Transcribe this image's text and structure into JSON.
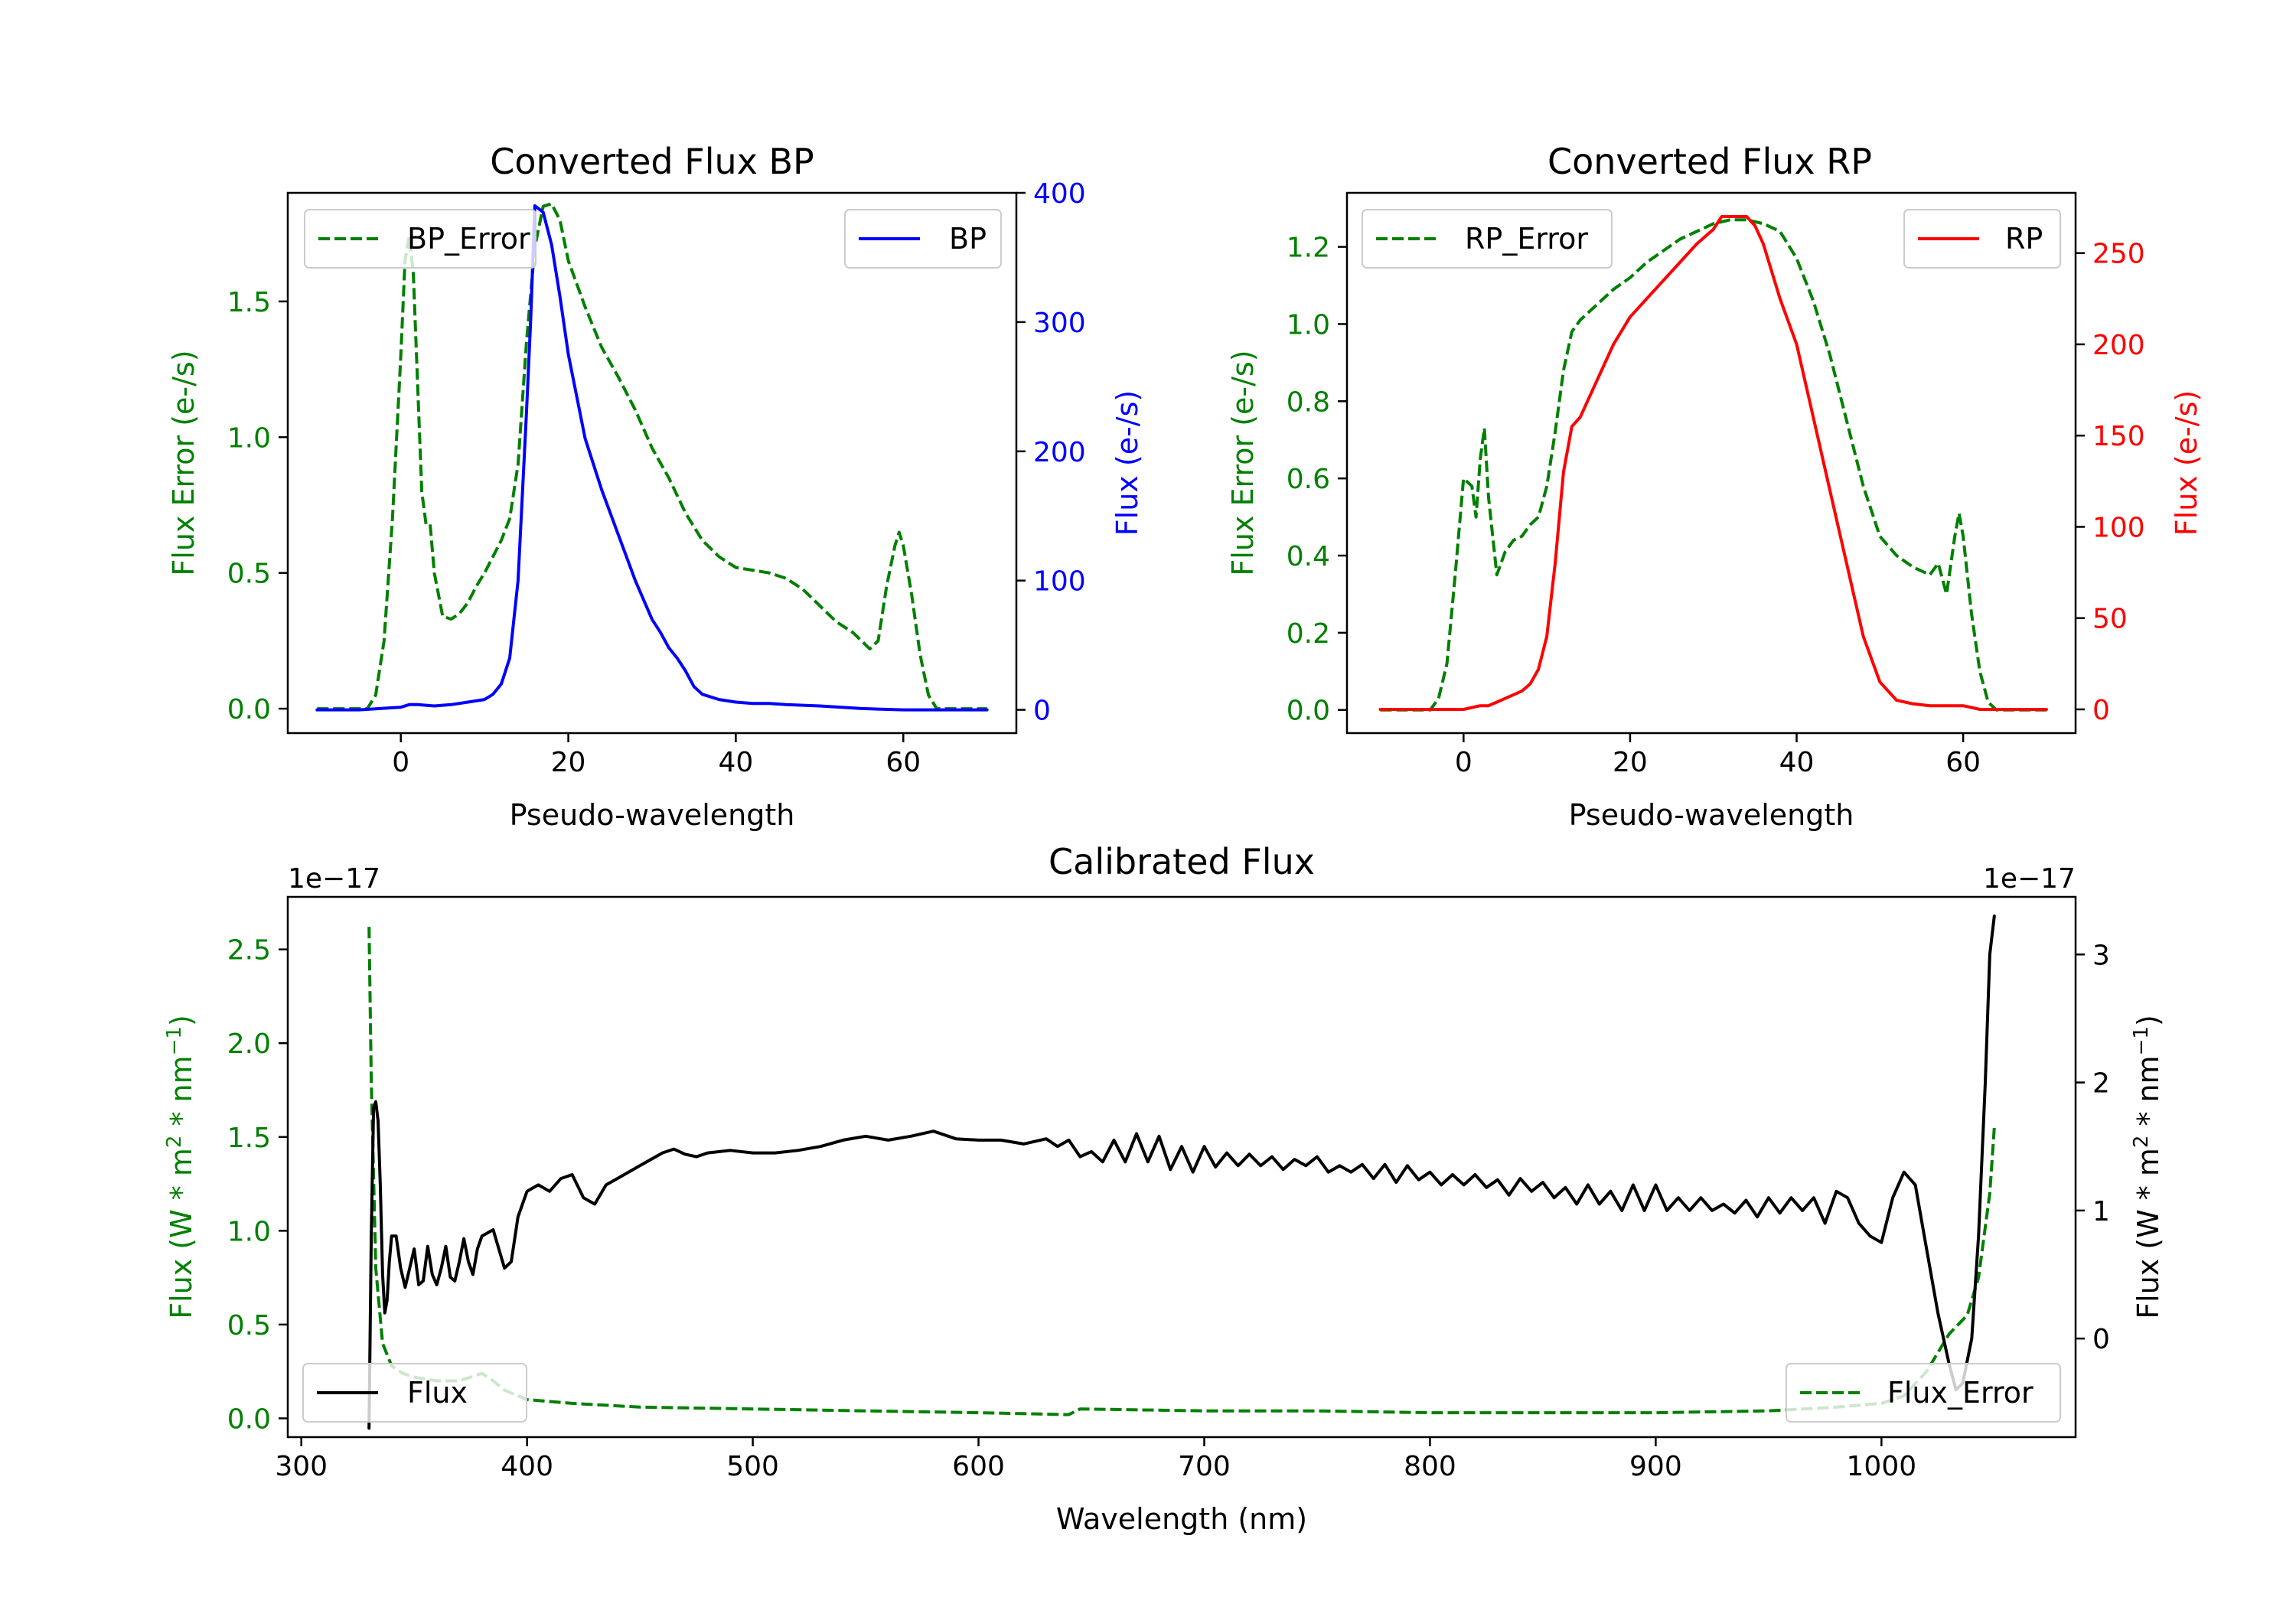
{
  "colors": {
    "green": "#008000",
    "blue": "#0000ff",
    "red": "#ff0000",
    "black": "#000000"
  },
  "chart_data": [
    {
      "id": "bp",
      "type": "line",
      "title": "Converted Flux BP",
      "xlabel": "Pseudo-wavelength",
      "ylabel_left": "Flux Error (e-/s)",
      "ylabel_right": "Flux (e-/s)",
      "xlim": [
        -13.5,
        73.5
      ],
      "ylim_left": [
        -0.09,
        1.9
      ],
      "ylim_right": [
        -18,
        400
      ],
      "xticks": [
        0,
        20,
        40,
        60
      ],
      "yticks_left": [
        0.0,
        0.5,
        1.0,
        1.5
      ],
      "ytick_labels_left": [
        "0.0",
        "0.5",
        "1.0",
        "1.5"
      ],
      "yticks_right": [
        0,
        100,
        200,
        300,
        400
      ],
      "ytick_labels_right": [
        "0",
        "100",
        "200",
        "300",
        "400"
      ],
      "series": [
        {
          "name": "BP_Error",
          "axis": "left",
          "style": "dashed",
          "color": "#008000",
          "legend": "top-left",
          "x": [
            -10,
            -4,
            -3,
            -2,
            -1,
            0,
            0.5,
            1,
            1.5,
            2,
            2.5,
            3,
            3.5,
            4,
            5,
            6,
            7,
            8,
            9,
            10,
            11,
            12,
            13,
            14,
            15,
            16,
            17,
            18,
            19,
            20,
            22,
            24,
            26,
            28,
            30,
            32,
            34,
            36,
            38,
            40,
            42,
            44,
            46,
            48,
            50,
            52,
            54,
            56,
            57,
            58,
            59,
            59.5,
            60,
            61,
            62,
            63,
            64,
            66,
            68,
            70
          ],
          "y": [
            0.0,
            0.0,
            0.05,
            0.25,
            0.7,
            1.3,
            1.65,
            1.74,
            1.6,
            1.2,
            0.8,
            0.68,
            0.68,
            0.5,
            0.34,
            0.33,
            0.35,
            0.39,
            0.45,
            0.5,
            0.56,
            0.62,
            0.7,
            0.9,
            1.35,
            1.7,
            1.85,
            1.86,
            1.8,
            1.65,
            1.48,
            1.33,
            1.22,
            1.1,
            0.96,
            0.85,
            0.72,
            0.62,
            0.56,
            0.52,
            0.51,
            0.5,
            0.48,
            0.44,
            0.38,
            0.32,
            0.28,
            0.22,
            0.25,
            0.45,
            0.6,
            0.65,
            0.6,
            0.42,
            0.2,
            0.05,
            0.0,
            0.0,
            0.0,
            0.0
          ]
        },
        {
          "name": "BP",
          "axis": "right",
          "style": "solid",
          "color": "#0000ff",
          "legend": "top-right",
          "x": [
            -10,
            -5,
            0,
            1,
            2,
            4,
            6,
            8,
            10,
            11,
            12,
            13,
            14,
            15,
            15.5,
            16,
            17,
            18,
            19,
            20,
            22,
            24,
            26,
            28,
            30,
            31,
            32,
            33,
            34,
            35,
            36,
            38,
            40,
            42,
            44,
            46,
            50,
            55,
            60,
            65,
            70
          ],
          "y": [
            0,
            0,
            2,
            4,
            4,
            3,
            4,
            6,
            8,
            12,
            20,
            40,
            100,
            230,
            300,
            390,
            385,
            360,
            320,
            275,
            210,
            170,
            135,
            100,
            70,
            60,
            48,
            40,
            30,
            18,
            12,
            8,
            6,
            5,
            5,
            4,
            3,
            1,
            0,
            0,
            0
          ]
        }
      ]
    },
    {
      "id": "rp",
      "type": "line",
      "title": "Converted Flux RP",
      "xlabel": "Pseudo-wavelength",
      "ylabel_left": "Flux Error (e-/s)",
      "ylabel_right": "Flux (e-/s)",
      "xlim": [
        -14,
        73.5
      ],
      "ylim_left": [
        -0.06,
        1.34
      ],
      "ylim_right": [
        -13,
        283
      ],
      "xticks": [
        0,
        20,
        40,
        60
      ],
      "yticks_left": [
        0.0,
        0.2,
        0.4,
        0.6,
        0.8,
        1.0,
        1.2
      ],
      "ytick_labels_left": [
        "0.0",
        "0.2",
        "0.4",
        "0.6",
        "0.8",
        "1.0",
        "1.2"
      ],
      "yticks_right": [
        0,
        50,
        100,
        150,
        200,
        250
      ],
      "ytick_labels_right": [
        "0",
        "50",
        "100",
        "150",
        "200",
        "250"
      ],
      "series": [
        {
          "name": "RP_Error",
          "axis": "left",
          "style": "dashed",
          "color": "#008000",
          "legend": "top-left",
          "x": [
            -10,
            -4,
            -3,
            -2,
            -1,
            0,
            1,
            1.5,
            2,
            2.5,
            3,
            4,
            5,
            6,
            7,
            8,
            9,
            10,
            11,
            12,
            13,
            14,
            16,
            18,
            20,
            22,
            24,
            26,
            28,
            30,
            32,
            34,
            36,
            38,
            40,
            42,
            44,
            46,
            48,
            50,
            52,
            54,
            55,
            56,
            57,
            58,
            59,
            59.5,
            60,
            61,
            62,
            63,
            64,
            66,
            68,
            70
          ],
          "y": [
            0.0,
            0.0,
            0.03,
            0.12,
            0.35,
            0.6,
            0.58,
            0.5,
            0.65,
            0.73,
            0.55,
            0.35,
            0.41,
            0.44,
            0.45,
            0.48,
            0.5,
            0.58,
            0.72,
            0.88,
            0.98,
            1.01,
            1.05,
            1.09,
            1.12,
            1.16,
            1.19,
            1.22,
            1.24,
            1.26,
            1.27,
            1.27,
            1.26,
            1.24,
            1.17,
            1.06,
            0.92,
            0.75,
            0.58,
            0.45,
            0.4,
            0.37,
            0.36,
            0.35,
            0.38,
            0.3,
            0.45,
            0.51,
            0.45,
            0.25,
            0.1,
            0.02,
            0.0,
            0.0,
            0.0,
            0.0
          ]
        },
        {
          "name": "RP",
          "axis": "right",
          "style": "solid",
          "color": "#ff0000",
          "legend": "top-right",
          "x": [
            -10,
            -5,
            0,
            2,
            3,
            4,
            5,
            6,
            7,
            8,
            9,
            10,
            11,
            12,
            13,
            14,
            16,
            18,
            20,
            22,
            24,
            26,
            28,
            30,
            31,
            32,
            34,
            35,
            36,
            38,
            40,
            42,
            44,
            46,
            48,
            50,
            52,
            54,
            56,
            58,
            60,
            62,
            64,
            66,
            70
          ],
          "y": [
            0,
            0,
            0,
            2,
            2,
            4,
            6,
            8,
            10,
            14,
            22,
            40,
            80,
            130,
            155,
            160,
            180,
            200,
            215,
            225,
            235,
            245,
            255,
            263,
            270,
            270,
            270,
            265,
            255,
            225,
            200,
            160,
            120,
            80,
            40,
            15,
            5,
            3,
            2,
            2,
            2,
            0,
            0,
            0,
            0
          ]
        }
      ]
    },
    {
      "id": "cal",
      "type": "line",
      "title": "Calibrated Flux",
      "xlabel": "Wavelength (nm)",
      "ylabel_left": "Flux (W * m",
      "ylabel_left_exp": "2",
      "ylabel_left_mid": " * nm",
      "ylabel_left_exp2": "−1",
      "ylabel_left_end": ")",
      "ylabel_right": "Flux (W * m",
      "ylabel_right_exp": "2",
      "ylabel_right_mid": " * nm",
      "ylabel_right_exp2": "−1",
      "ylabel_right_end": ")",
      "offset_left": "1e−17",
      "offset_right": "1e−17",
      "xlim": [
        294,
        1086
      ],
      "ylim_left": [
        -0.1,
        2.78
      ],
      "ylim_right": [
        -0.77,
        3.45
      ],
      "xticks": [
        300,
        400,
        500,
        600,
        700,
        800,
        900,
        1000
      ],
      "yticks_left": [
        0.0,
        0.5,
        1.0,
        1.5,
        2.0,
        2.5
      ],
      "ytick_labels_left": [
        "0.0",
        "0.5",
        "1.0",
        "1.5",
        "2.0",
        "2.5"
      ],
      "yticks_right": [
        0,
        1,
        2,
        3
      ],
      "ytick_labels_right": [
        "0",
        "1",
        "2",
        "3"
      ],
      "series": [
        {
          "name": "Flux_Error",
          "axis": "left",
          "style": "dashed",
          "color": "#008000",
          "legend": "bottom-right",
          "x": [
            330,
            331,
            333,
            336,
            340,
            345,
            350,
            360,
            370,
            375,
            380,
            385,
            390,
            400,
            420,
            450,
            500,
            550,
            600,
            640,
            645,
            700,
            750,
            800,
            850,
            900,
            950,
            980,
            1000,
            1010,
            1020,
            1030,
            1038,
            1043,
            1048,
            1050
          ],
          "y": [
            2.62,
            1.8,
            0.8,
            0.4,
            0.28,
            0.24,
            0.22,
            0.2,
            0.2,
            0.22,
            0.24,
            0.2,
            0.15,
            0.1,
            0.08,
            0.06,
            0.05,
            0.04,
            0.03,
            0.02,
            0.05,
            0.04,
            0.04,
            0.03,
            0.03,
            0.03,
            0.04,
            0.06,
            0.08,
            0.12,
            0.25,
            0.45,
            0.55,
            0.75,
            1.2,
            1.55
          ]
        },
        {
          "name": "Flux",
          "axis": "right",
          "style": "solid",
          "color": "#000000",
          "legend": "bottom-left",
          "x": [
            330,
            331,
            332,
            333,
            334,
            335,
            336,
            337,
            338,
            339,
            340,
            342,
            344,
            346,
            348,
            350,
            352,
            354,
            356,
            358,
            360,
            362,
            364,
            366,
            368,
            370,
            372,
            374,
            376,
            378,
            380,
            385,
            390,
            393,
            396,
            400,
            405,
            410,
            415,
            420,
            425,
            430,
            435,
            440,
            450,
            460,
            465,
            470,
            475,
            480,
            490,
            500,
            510,
            520,
            530,
            540,
            550,
            560,
            570,
            580,
            590,
            600,
            610,
            620,
            630,
            635,
            640,
            645,
            650,
            655,
            660,
            665,
            670,
            675,
            680,
            685,
            690,
            695,
            700,
            705,
            710,
            715,
            720,
            725,
            730,
            735,
            740,
            745,
            750,
            755,
            760,
            765,
            770,
            775,
            780,
            785,
            790,
            795,
            800,
            805,
            810,
            815,
            820,
            825,
            830,
            835,
            840,
            845,
            850,
            855,
            860,
            865,
            870,
            875,
            880,
            885,
            890,
            895,
            900,
            905,
            910,
            915,
            920,
            925,
            930,
            935,
            940,
            945,
            950,
            955,
            960,
            965,
            970,
            975,
            980,
            985,
            990,
            995,
            1000,
            1005,
            1010,
            1015,
            1020,
            1025,
            1030,
            1033,
            1036,
            1040,
            1043,
            1046,
            1048,
            1050
          ],
          "y": [
            -0.7,
            0.8,
            1.8,
            1.85,
            1.7,
            1.2,
            0.5,
            0.2,
            0.3,
            0.6,
            0.8,
            0.8,
            0.55,
            0.4,
            0.55,
            0.7,
            0.42,
            0.45,
            0.72,
            0.5,
            0.42,
            0.55,
            0.72,
            0.48,
            0.45,
            0.6,
            0.78,
            0.6,
            0.5,
            0.7,
            0.8,
            0.85,
            0.55,
            0.6,
            0.95,
            1.15,
            1.2,
            1.15,
            1.25,
            1.28,
            1.1,
            1.05,
            1.2,
            1.25,
            1.35,
            1.45,
            1.48,
            1.44,
            1.42,
            1.45,
            1.47,
            1.45,
            1.45,
            1.47,
            1.5,
            1.55,
            1.58,
            1.55,
            1.58,
            1.62,
            1.56,
            1.55,
            1.55,
            1.52,
            1.56,
            1.5,
            1.55,
            1.42,
            1.46,
            1.38,
            1.55,
            1.38,
            1.6,
            1.38,
            1.58,
            1.32,
            1.5,
            1.3,
            1.5,
            1.34,
            1.45,
            1.35,
            1.44,
            1.35,
            1.42,
            1.32,
            1.4,
            1.35,
            1.42,
            1.3,
            1.35,
            1.3,
            1.36,
            1.25,
            1.36,
            1.22,
            1.35,
            1.24,
            1.3,
            1.2,
            1.28,
            1.2,
            1.28,
            1.18,
            1.24,
            1.12,
            1.25,
            1.15,
            1.22,
            1.1,
            1.18,
            1.05,
            1.2,
            1.05,
            1.15,
            1.0,
            1.2,
            1.0,
            1.2,
            1.0,
            1.1,
            1.0,
            1.1,
            1.0,
            1.05,
            0.98,
            1.08,
            0.95,
            1.1,
            0.98,
            1.1,
            1.0,
            1.1,
            0.9,
            1.15,
            1.1,
            0.9,
            0.8,
            0.75,
            1.1,
            1.3,
            1.2,
            0.7,
            0.2,
            -0.2,
            -0.4,
            -0.35,
            0.0,
            0.8,
            2.0,
            3.0,
            3.3
          ]
        }
      ]
    }
  ]
}
